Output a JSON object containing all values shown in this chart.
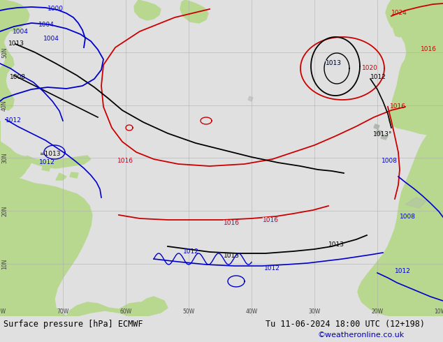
{
  "title_bottom": "Surface pressure [hPa] ECMWF",
  "datetime_str": "Tu 11-06-2024 18:00 UTC (12+198)",
  "copyright": "©weatheronline.co.uk",
  "ocean_color": "#d8dce8",
  "land_color": "#b8d890",
  "land_gray_color": "#b0b8b0",
  "fig_width": 6.34,
  "fig_height": 4.9,
  "dpi": 100,
  "bottom_bar_color": "#e0e0e0",
  "bottom_text_color": "#000000",
  "copyright_color": "#0000bb",
  "grid_color": "#aaaaaa",
  "isobar_red": "#cc0000",
  "isobar_black": "#000000",
  "isobar_blue": "#0000cc"
}
